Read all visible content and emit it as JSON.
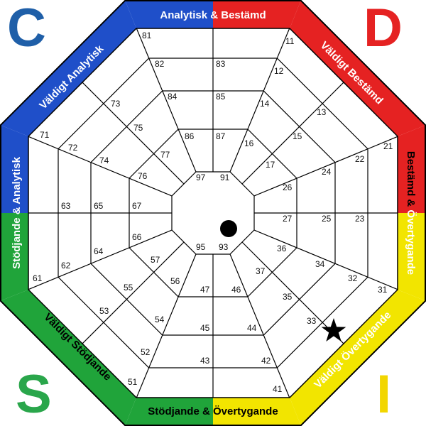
{
  "colors": {
    "blue": "#1f4fc9",
    "red": "#e52222",
    "green": "#20a43a",
    "yellow": "#f2e500",
    "outline": "#000000",
    "white": "#ffffff"
  },
  "corners": {
    "c": {
      "letter": "C",
      "color": "#1f5fa8"
    },
    "d": {
      "letter": "D",
      "color": "#e52222"
    },
    "s": {
      "letter": "S",
      "color": "#2aa64b"
    },
    "i": {
      "letter": "I",
      "color": "#f2d600"
    }
  },
  "side_labels": {
    "top_left": "Analytisk",
    "top_amp": " & ",
    "top_right": "Bestämd",
    "upper_right": "Väldigt Bestämd",
    "right_top": "Bestämd",
    "right_amp": " & ",
    "right_bottom": "Övertygande",
    "lower_right": "Väldigt Övertygande",
    "bottom_left": "Stödjande",
    "bottom_amp": " & ",
    "bottom_right": "Övertygande",
    "lower_left": "Väldigt Stödjande",
    "left_bottom": "Stödjande",
    "left_amp": " & ",
    "left_top": "Analytisk",
    "upper_left": "Väldigt Analytisk"
  },
  "cells": {
    "c11": "11",
    "c12": "12",
    "c13": "13",
    "c14": "14",
    "c15": "15",
    "c16": "16",
    "c17": "17",
    "c21": "21",
    "c22": "22",
    "c23": "23",
    "c24": "24",
    "c25": "25",
    "c26": "26",
    "c27": "27",
    "c31": "31",
    "c32": "32",
    "c33": "33",
    "c34": "34",
    "c35": "35",
    "c36": "36",
    "c37": "37",
    "c41": "41",
    "c42": "42",
    "c43": "43",
    "c44": "44",
    "c45": "45",
    "c46": "46",
    "c47": "47",
    "c51": "51",
    "c52": "52",
    "c53": "53",
    "c54": "54",
    "c55": "55",
    "c56": "56",
    "c57": "57",
    "c61": "61",
    "c62": "62",
    "c63": "63",
    "c64": "64",
    "c65": "65",
    "c66": "66",
    "c67": "67",
    "c71": "71",
    "c72": "72",
    "c73": "73",
    "c74": "74",
    "c75": "75",
    "c76": "76",
    "c77": "77",
    "c81": "81",
    "c82": "82",
    "c83": "83",
    "c84": "84",
    "c85": "85",
    "c86": "86",
    "c87": "87",
    "c91": "91",
    "c93": "93",
    "c95": "95",
    "c97": "97"
  },
  "markers": {
    "dot": "center-dot",
    "star": "star-icon"
  }
}
